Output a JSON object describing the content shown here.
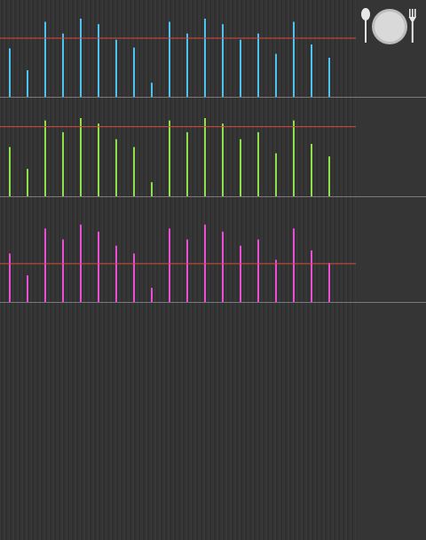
{
  "colors": {
    "background": "#333333",
    "separator": "#7a7a7a",
    "target_line": "#d94a3c",
    "series_1": "#4cc3f0",
    "series_2": "#8fe04a",
    "series_3": "#e84fd6"
  },
  "icons": {
    "meal": "meal-plate-spoon-fork-icon"
  },
  "chart_data": [
    {
      "type": "bar",
      "color": "#4cc3f0",
      "ylim": [
        0,
        100
      ],
      "target": 75,
      "values": [
        62,
        34,
        96,
        81,
        100,
        93,
        73,
        63,
        18,
        96,
        81,
        100,
        93,
        73,
        81,
        55,
        96,
        67,
        50
      ]
    },
    {
      "type": "bar",
      "color": "#8fe04a",
      "ylim": [
        0,
        100
      ],
      "target": 89,
      "values": [
        63,
        35,
        97,
        82,
        100,
        93,
        73,
        63,
        18,
        97,
        82,
        100,
        93,
        73,
        82,
        55,
        97,
        67,
        51
      ]
    },
    {
      "type": "bar",
      "color": "#e84fd6",
      "ylim": [
        0,
        100
      ],
      "target": 49,
      "values": [
        62,
        34,
        94,
        80,
        99,
        90,
        72,
        62,
        18,
        94,
        80,
        99,
        90,
        72,
        80,
        54,
        94,
        66,
        50
      ]
    }
  ]
}
